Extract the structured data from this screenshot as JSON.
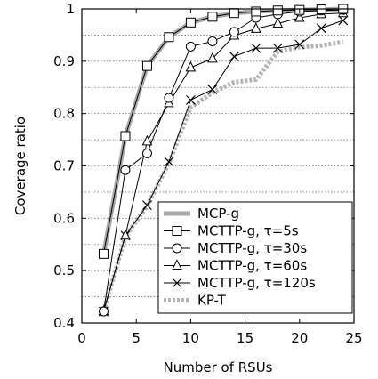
{
  "chart_data": {
    "type": "line",
    "title": "",
    "xlabel": "Number of RSUs",
    "ylabel": "Coverage ratio",
    "xlim": [
      0,
      25
    ],
    "ylim": [
      0.4,
      1.0
    ],
    "x_ticks": [
      "0",
      "5",
      "10",
      "15",
      "20",
      "25"
    ],
    "y_ticks": [
      "0.4",
      "0.5",
      "0.6",
      "0.7",
      "0.8",
      "0.9",
      "1"
    ],
    "grid": true,
    "legend_position": "bottom-right",
    "series": [
      {
        "name": "MCP-g",
        "marker": "none",
        "style": "thick-gray",
        "color": "#999999",
        "x": [
          2,
          4,
          6,
          8,
          10,
          12,
          14,
          16,
          18,
          20,
          22,
          24
        ],
        "y": [
          0.532,
          0.757,
          0.891,
          0.946,
          0.974,
          0.985,
          0.992,
          0.995,
          0.997,
          0.998,
          0.999,
          1.0
        ]
      },
      {
        "name": "MCTTP-g, τ=5s",
        "marker": "square",
        "style": "thin-black",
        "color": "#000000",
        "x": [
          2,
          4,
          6,
          8,
          10,
          12,
          14,
          16,
          18,
          20,
          22,
          24
        ],
        "y": [
          0.532,
          0.757,
          0.891,
          0.946,
          0.974,
          0.985,
          0.992,
          0.995,
          0.997,
          0.998,
          0.999,
          1.0
        ]
      },
      {
        "name": "MCTTP-g, τ=30s",
        "marker": "circle",
        "style": "thin-black",
        "color": "#000000",
        "x": [
          2,
          4,
          6,
          8,
          10,
          12,
          14,
          16,
          18,
          20,
          22,
          24
        ],
        "y": [
          0.422,
          0.692,
          0.724,
          0.83,
          0.928,
          0.938,
          0.956,
          0.983,
          0.99,
          0.995,
          0.997,
          0.998
        ]
      },
      {
        "name": "MCTTP-g, τ=60s",
        "marker": "triangle",
        "style": "thin-black",
        "color": "#000000",
        "x": [
          2,
          4,
          6,
          8,
          10,
          12,
          14,
          16,
          18,
          20,
          22,
          24
        ],
        "y": [
          0.422,
          0.567,
          0.747,
          0.82,
          0.888,
          0.905,
          0.949,
          0.962,
          0.972,
          0.983,
          0.99,
          0.992
        ]
      },
      {
        "name": "MCTTP-g, τ=120s",
        "marker": "x",
        "style": "thin-black",
        "color": "#000000",
        "x": [
          2,
          4,
          6,
          8,
          10,
          12,
          14,
          16,
          18,
          20,
          22,
          24
        ],
        "y": [
          0.422,
          0.567,
          0.625,
          0.708,
          0.826,
          0.846,
          0.909,
          0.925,
          0.925,
          0.932,
          0.963,
          0.978
        ]
      },
      {
        "name": "KP-T",
        "marker": "none",
        "style": "thick-dotted-gray",
        "color": "#aaaaaa",
        "x": [
          2,
          4,
          6,
          8,
          10,
          12,
          14,
          16,
          18,
          20,
          22,
          24
        ],
        "y": [
          0.422,
          0.565,
          0.624,
          0.705,
          0.812,
          0.84,
          0.86,
          0.865,
          0.918,
          0.927,
          0.93,
          0.937
        ]
      }
    ]
  }
}
